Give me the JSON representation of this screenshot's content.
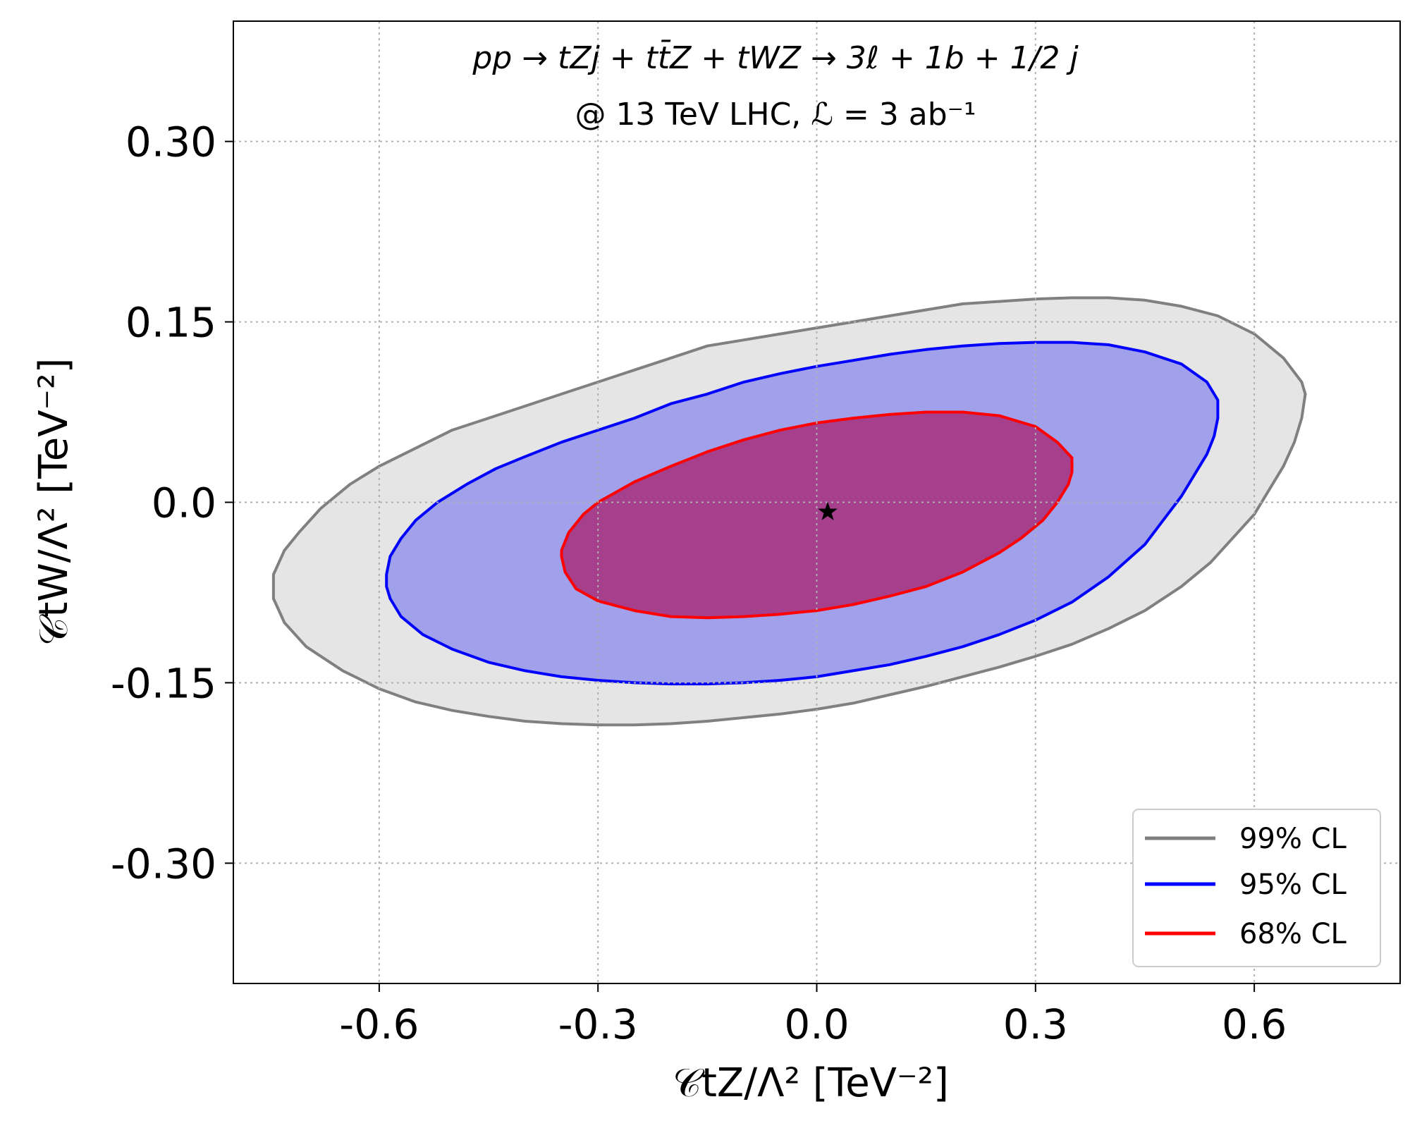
{
  "chart_data": {
    "type": "contour",
    "title": [
      "pp → tZj + tt̄Z + tWZ → 3ℓ + 1b + 1/2 j",
      "@ 13 TeV LHC, ℒ = 3 ab⁻¹"
    ],
    "xlabel": "𝒞tZ/Λ² [TeV⁻²]",
    "ylabel": "𝒞tW/Λ² [TeV⁻²]",
    "xlim": [
      -0.8,
      0.8
    ],
    "ylim": [
      -0.4,
      0.4
    ],
    "xticks": [
      -0.6,
      -0.3,
      0.0,
      0.3,
      0.6
    ],
    "xtick_labels": [
      "-0.6",
      "-0.3",
      "0.0",
      "0.3",
      "0.6"
    ],
    "yticks": [
      0.3,
      0.15,
      0.0,
      -0.15,
      -0.3
    ],
    "ytick_labels": [
      "0.30",
      "0.15",
      "0.0",
      "-0.15",
      "-0.30"
    ],
    "grid": true,
    "legend_position": "bottom-right",
    "best_fit": {
      "x": 0.015,
      "y": -0.008,
      "marker": "star"
    },
    "series": [
      {
        "name": "99% CL",
        "line_color": "#808080",
        "fill_color": "#e5e5e5",
        "points": [
          [
            -0.745,
            -0.07
          ],
          [
            -0.745,
            -0.06
          ],
          [
            -0.73,
            -0.04
          ],
          [
            -0.71,
            -0.025
          ],
          [
            -0.68,
            -0.005
          ],
          [
            -0.64,
            0.015
          ],
          [
            -0.6,
            0.03
          ],
          [
            -0.55,
            0.045
          ],
          [
            -0.5,
            0.06
          ],
          [
            -0.45,
            0.07
          ],
          [
            -0.4,
            0.08
          ],
          [
            -0.35,
            0.09
          ],
          [
            -0.3,
            0.1
          ],
          [
            -0.25,
            0.11
          ],
          [
            -0.2,
            0.12
          ],
          [
            -0.15,
            0.13
          ],
          [
            -0.1,
            0.135
          ],
          [
            -0.05,
            0.14
          ],
          [
            0.0,
            0.145
          ],
          [
            0.05,
            0.15
          ],
          [
            0.1,
            0.155
          ],
          [
            0.15,
            0.16
          ],
          [
            0.2,
            0.165
          ],
          [
            0.25,
            0.167
          ],
          [
            0.3,
            0.169
          ],
          [
            0.35,
            0.17
          ],
          [
            0.4,
            0.17
          ],
          [
            0.45,
            0.168
          ],
          [
            0.5,
            0.163
          ],
          [
            0.55,
            0.155
          ],
          [
            0.6,
            0.14
          ],
          [
            0.64,
            0.12
          ],
          [
            0.665,
            0.1
          ],
          [
            0.67,
            0.09
          ],
          [
            0.665,
            0.07
          ],
          [
            0.655,
            0.05
          ],
          [
            0.64,
            0.03
          ],
          [
            0.62,
            0.01
          ],
          [
            0.6,
            -0.01
          ],
          [
            0.57,
            -0.03
          ],
          [
            0.54,
            -0.05
          ],
          [
            0.5,
            -0.07
          ],
          [
            0.45,
            -0.09
          ],
          [
            0.4,
            -0.105
          ],
          [
            0.35,
            -0.118
          ],
          [
            0.3,
            -0.128
          ],
          [
            0.25,
            -0.137
          ],
          [
            0.2,
            -0.145
          ],
          [
            0.15,
            -0.153
          ],
          [
            0.1,
            -0.16
          ],
          [
            0.05,
            -0.167
          ],
          [
            0.0,
            -0.172
          ],
          [
            -0.05,
            -0.176
          ],
          [
            -0.1,
            -0.179
          ],
          [
            -0.15,
            -0.182
          ],
          [
            -0.2,
            -0.184
          ],
          [
            -0.25,
            -0.185
          ],
          [
            -0.3,
            -0.185
          ],
          [
            -0.35,
            -0.184
          ],
          [
            -0.4,
            -0.182
          ],
          [
            -0.45,
            -0.178
          ],
          [
            -0.5,
            -0.173
          ],
          [
            -0.55,
            -0.166
          ],
          [
            -0.6,
            -0.155
          ],
          [
            -0.65,
            -0.14
          ],
          [
            -0.7,
            -0.12
          ],
          [
            -0.73,
            -0.1
          ],
          [
            -0.745,
            -0.08
          ]
        ]
      },
      {
        "name": "95% CL",
        "line_color": "#0000ff",
        "fill_color": "#a0a0eb",
        "points": [
          [
            -0.59,
            -0.07
          ],
          [
            -0.59,
            -0.06
          ],
          [
            -0.585,
            -0.045
          ],
          [
            -0.57,
            -0.03
          ],
          [
            -0.55,
            -0.015
          ],
          [
            -0.52,
            0.0
          ],
          [
            -0.48,
            0.015
          ],
          [
            -0.44,
            0.028
          ],
          [
            -0.4,
            0.038
          ],
          [
            -0.35,
            0.05
          ],
          [
            -0.3,
            0.06
          ],
          [
            -0.25,
            0.07
          ],
          [
            -0.2,
            0.082
          ],
          [
            -0.15,
            0.09
          ],
          [
            -0.1,
            0.1
          ],
          [
            -0.05,
            0.107
          ],
          [
            0.0,
            0.113
          ],
          [
            0.05,
            0.118
          ],
          [
            0.1,
            0.123
          ],
          [
            0.15,
            0.127
          ],
          [
            0.2,
            0.13
          ],
          [
            0.25,
            0.132
          ],
          [
            0.3,
            0.133
          ],
          [
            0.35,
            0.133
          ],
          [
            0.4,
            0.131
          ],
          [
            0.45,
            0.125
          ],
          [
            0.5,
            0.115
          ],
          [
            0.535,
            0.1
          ],
          [
            0.55,
            0.085
          ],
          [
            0.55,
            0.07
          ],
          [
            0.545,
            0.055
          ],
          [
            0.535,
            0.04
          ],
          [
            0.52,
            0.025
          ],
          [
            0.5,
            0.005
          ],
          [
            0.475,
            -0.015
          ],
          [
            0.45,
            -0.035
          ],
          [
            0.4,
            -0.062
          ],
          [
            0.35,
            -0.083
          ],
          [
            0.3,
            -0.098
          ],
          [
            0.25,
            -0.11
          ],
          [
            0.2,
            -0.12
          ],
          [
            0.15,
            -0.128
          ],
          [
            0.1,
            -0.135
          ],
          [
            0.05,
            -0.14
          ],
          [
            0.0,
            -0.145
          ],
          [
            -0.05,
            -0.148
          ],
          [
            -0.1,
            -0.15
          ],
          [
            -0.15,
            -0.151
          ],
          [
            -0.2,
            -0.151
          ],
          [
            -0.25,
            -0.15
          ],
          [
            -0.3,
            -0.148
          ],
          [
            -0.35,
            -0.145
          ],
          [
            -0.4,
            -0.14
          ],
          [
            -0.45,
            -0.133
          ],
          [
            -0.5,
            -0.122
          ],
          [
            -0.54,
            -0.11
          ],
          [
            -0.57,
            -0.095
          ],
          [
            -0.585,
            -0.08
          ]
        ]
      },
      {
        "name": "68% CL",
        "line_color": "#ff0000",
        "fill_color": "#a63f8c",
        "points": [
          [
            -0.35,
            -0.04
          ],
          [
            -0.34,
            -0.025
          ],
          [
            -0.32,
            -0.01
          ],
          [
            -0.3,
            0.0
          ],
          [
            -0.25,
            0.017
          ],
          [
            -0.2,
            0.03
          ],
          [
            -0.15,
            0.042
          ],
          [
            -0.1,
            0.052
          ],
          [
            -0.05,
            0.06
          ],
          [
            0.0,
            0.066
          ],
          [
            0.05,
            0.07
          ],
          [
            0.1,
            0.073
          ],
          [
            0.15,
            0.075
          ],
          [
            0.2,
            0.075
          ],
          [
            0.25,
            0.072
          ],
          [
            0.3,
            0.063
          ],
          [
            0.33,
            0.05
          ],
          [
            0.35,
            0.037
          ],
          [
            0.35,
            0.025
          ],
          [
            0.345,
            0.015
          ],
          [
            0.33,
            0.0
          ],
          [
            0.31,
            -0.015
          ],
          [
            0.28,
            -0.03
          ],
          [
            0.25,
            -0.042
          ],
          [
            0.2,
            -0.058
          ],
          [
            0.15,
            -0.07
          ],
          [
            0.1,
            -0.078
          ],
          [
            0.05,
            -0.085
          ],
          [
            0.0,
            -0.09
          ],
          [
            -0.05,
            -0.093
          ],
          [
            -0.1,
            -0.095
          ],
          [
            -0.15,
            -0.096
          ],
          [
            -0.2,
            -0.095
          ],
          [
            -0.25,
            -0.09
          ],
          [
            -0.3,
            -0.082
          ],
          [
            -0.33,
            -0.072
          ],
          [
            -0.345,
            -0.058
          ],
          [
            -0.35,
            -0.045
          ]
        ]
      }
    ]
  }
}
